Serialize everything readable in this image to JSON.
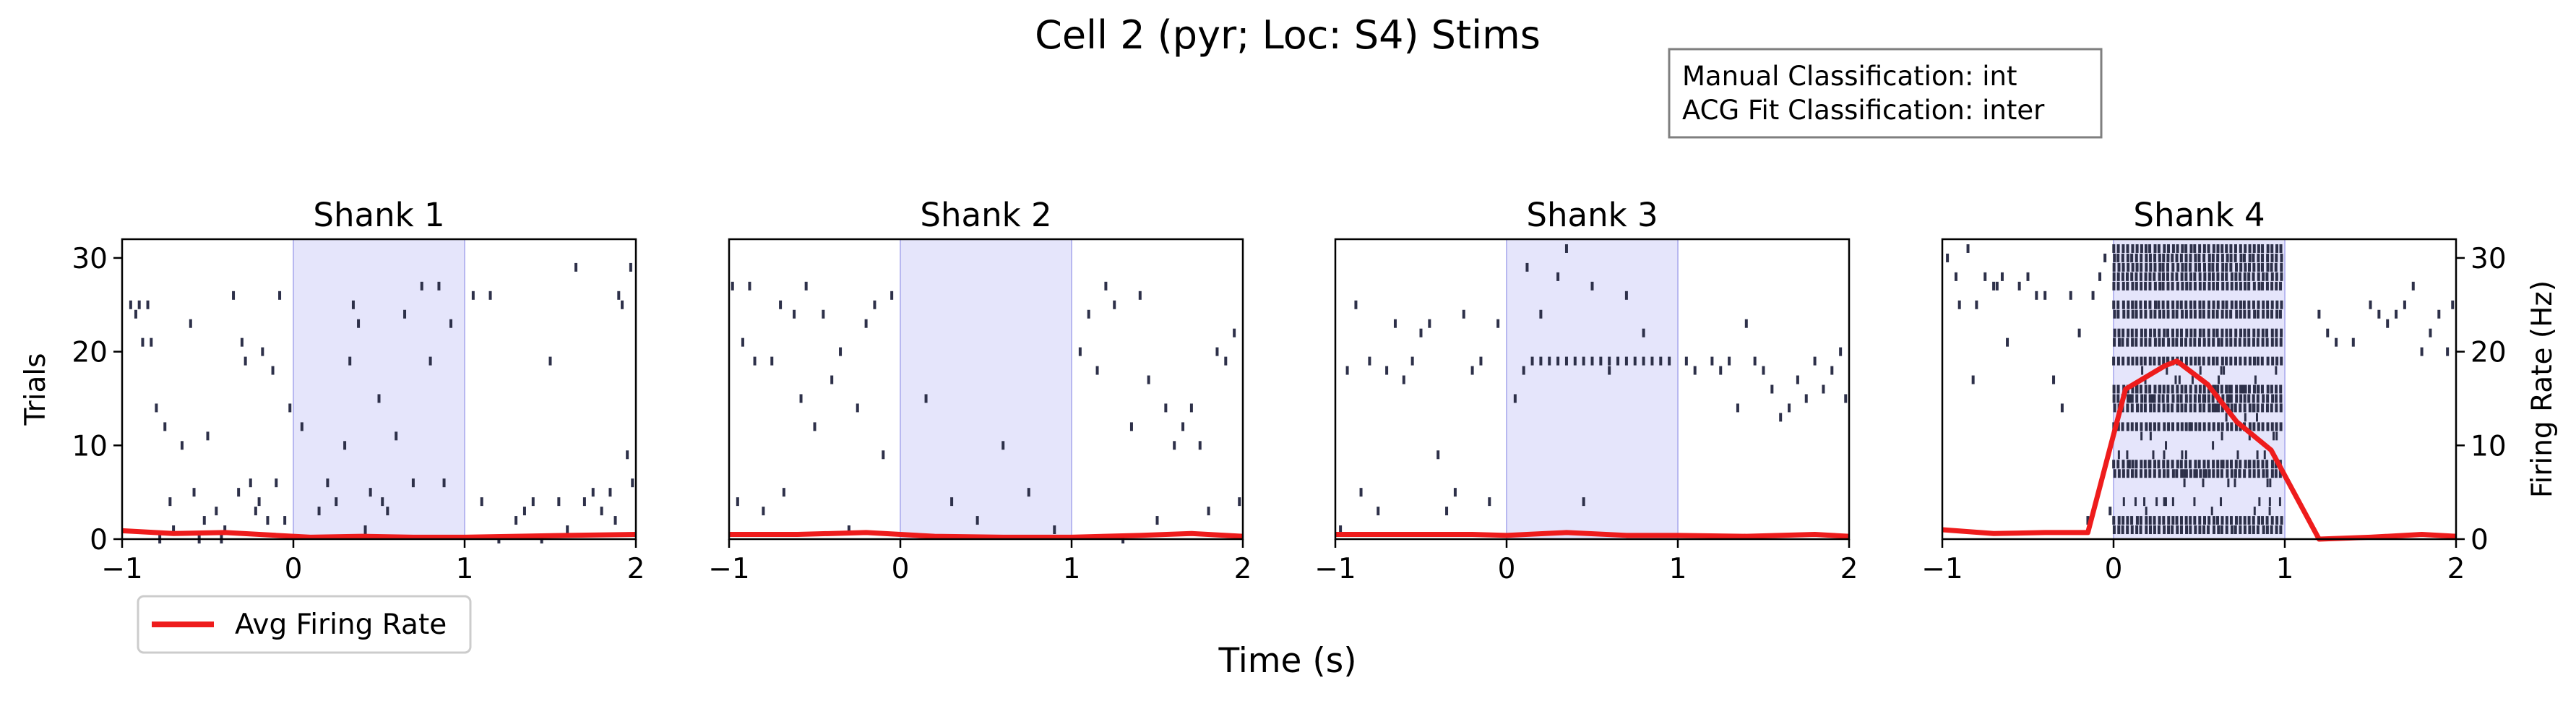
{
  "figure": {
    "title": "Cell 2 (pyr; Loc: S4) Stims",
    "xlabel": "Time (s)",
    "infobox": {
      "line1": "Manual Classification: int",
      "line2": "ACG Fit Classification: inter"
    },
    "legend": {
      "label": "Avg Firing Rate",
      "placement": "lower-left, below first panel"
    }
  },
  "colors": {
    "raster": "#2d3049",
    "rate_line": "#ee1c1c",
    "stim_fill": "#e5e5fb",
    "stim_edge": "#b8b8f0",
    "box_border": "#7f7f7f"
  },
  "chart_data": [
    {
      "type": "raster+line",
      "title": "Shank 1",
      "xlim": [
        -1,
        2
      ],
      "ylim": [
        0,
        32
      ],
      "ylabel": "Trials",
      "yticks": [
        0,
        10,
        20,
        30
      ],
      "xticks": [
        "−1",
        "0",
        "1",
        "2"
      ],
      "stim_window": [
        0,
        1
      ],
      "spikes": [
        [
          -0.95,
          25
        ],
        [
          -0.92,
          24
        ],
        [
          -0.9,
          25
        ],
        [
          -0.88,
          21
        ],
        [
          -0.85,
          25
        ],
        [
          -0.83,
          21
        ],
        [
          -0.8,
          14
        ],
        [
          -0.78,
          0
        ],
        [
          -0.75,
          12
        ],
        [
          -0.72,
          4
        ],
        [
          -0.7,
          1
        ],
        [
          -0.65,
          10
        ],
        [
          -0.6,
          23
        ],
        [
          -0.58,
          5
        ],
        [
          -0.55,
          0
        ],
        [
          -0.52,
          2
        ],
        [
          -0.5,
          11
        ],
        [
          -0.45,
          3
        ],
        [
          -0.42,
          0
        ],
        [
          -0.4,
          1
        ],
        [
          -0.35,
          26
        ],
        [
          -0.32,
          5
        ],
        [
          -0.3,
          21
        ],
        [
          -0.28,
          19
        ],
        [
          -0.25,
          6
        ],
        [
          -0.22,
          3
        ],
        [
          -0.2,
          4
        ],
        [
          -0.18,
          20
        ],
        [
          -0.15,
          2
        ],
        [
          -0.12,
          18
        ],
        [
          -0.1,
          6
        ],
        [
          -0.08,
          26
        ],
        [
          -0.05,
          2
        ],
        [
          -0.02,
          14
        ],
        [
          0.05,
          12
        ],
        [
          0.15,
          3
        ],
        [
          0.2,
          6
        ],
        [
          0.25,
          4
        ],
        [
          0.3,
          10
        ],
        [
          0.33,
          19
        ],
        [
          0.35,
          25
        ],
        [
          0.38,
          23
        ],
        [
          0.42,
          1
        ],
        [
          0.45,
          5
        ],
        [
          0.5,
          15
        ],
        [
          0.52,
          4
        ],
        [
          0.55,
          3
        ],
        [
          0.6,
          11
        ],
        [
          0.65,
          24
        ],
        [
          0.7,
          6
        ],
        [
          0.75,
          27
        ],
        [
          0.8,
          19
        ],
        [
          0.85,
          27
        ],
        [
          0.88,
          6
        ],
        [
          0.92,
          23
        ],
        [
          1.05,
          26
        ],
        [
          1.1,
          4
        ],
        [
          1.15,
          26
        ],
        [
          1.2,
          0
        ],
        [
          1.3,
          2
        ],
        [
          1.35,
          3
        ],
        [
          1.4,
          4
        ],
        [
          1.45,
          0
        ],
        [
          1.5,
          19
        ],
        [
          1.55,
          4
        ],
        [
          1.6,
          1
        ],
        [
          1.65,
          29
        ],
        [
          1.7,
          4
        ],
        [
          1.75,
          5
        ],
        [
          1.8,
          3
        ],
        [
          1.85,
          5
        ],
        [
          1.88,
          2
        ],
        [
          1.9,
          26
        ],
        [
          1.92,
          25
        ],
        [
          1.95,
          9
        ],
        [
          1.97,
          29
        ],
        [
          1.98,
          6
        ]
      ],
      "rate": {
        "x": [
          -1,
          -0.7,
          -0.4,
          -0.1,
          0.1,
          0.4,
          0.7,
          1.0,
          1.3,
          1.6,
          2.0
        ],
        "y": [
          0.9,
          0.6,
          0.7,
          0.4,
          0.2,
          0.3,
          0.2,
          0.2,
          0.3,
          0.4,
          0.5
        ]
      }
    },
    {
      "type": "raster+line",
      "title": "Shank 2",
      "xlim": [
        -1,
        2
      ],
      "ylim": [
        0,
        32
      ],
      "xticks": [
        "−1",
        "0",
        "1",
        "2"
      ],
      "stim_window": [
        0,
        1
      ],
      "spikes": [
        [
          -0.98,
          27
        ],
        [
          -0.95,
          4
        ],
        [
          -0.92,
          21
        ],
        [
          -0.88,
          27
        ],
        [
          -0.85,
          19
        ],
        [
          -0.8,
          3
        ],
        [
          -0.75,
          19
        ],
        [
          -0.7,
          25
        ],
        [
          -0.68,
          5
        ],
        [
          -0.62,
          24
        ],
        [
          -0.58,
          15
        ],
        [
          -0.55,
          27
        ],
        [
          -0.5,
          12
        ],
        [
          -0.45,
          24
        ],
        [
          -0.4,
          17
        ],
        [
          -0.35,
          20
        ],
        [
          -0.3,
          1
        ],
        [
          -0.25,
          14
        ],
        [
          -0.2,
          23
        ],
        [
          -0.15,
          25
        ],
        [
          -0.1,
          9
        ],
        [
          -0.05,
          26
        ],
        [
          0.15,
          15
        ],
        [
          0.3,
          4
        ],
        [
          0.45,
          2
        ],
        [
          0.6,
          10
        ],
        [
          0.75,
          5
        ],
        [
          0.9,
          1
        ],
        [
          1.05,
          20
        ],
        [
          1.1,
          24
        ],
        [
          1.15,
          18
        ],
        [
          1.2,
          27
        ],
        [
          1.25,
          25
        ],
        [
          1.3,
          0
        ],
        [
          1.35,
          12
        ],
        [
          1.4,
          26
        ],
        [
          1.45,
          17
        ],
        [
          1.5,
          2
        ],
        [
          1.55,
          14
        ],
        [
          1.6,
          10
        ],
        [
          1.65,
          12
        ],
        [
          1.7,
          14
        ],
        [
          1.75,
          10
        ],
        [
          1.8,
          3
        ],
        [
          1.85,
          20
        ],
        [
          1.9,
          19
        ],
        [
          1.95,
          22
        ],
        [
          1.98,
          4
        ]
      ],
      "rate": {
        "x": [
          -1,
          -0.6,
          -0.2,
          0.2,
          0.6,
          1.0,
          1.4,
          1.7,
          2.0
        ],
        "y": [
          0.5,
          0.5,
          0.7,
          0.3,
          0.2,
          0.2,
          0.4,
          0.6,
          0.3
        ]
      }
    },
    {
      "type": "raster+line",
      "title": "Shank 3",
      "xlim": [
        -1,
        2
      ],
      "ylim": [
        0,
        32
      ],
      "xticks": [
        "−1",
        "0",
        "1",
        "2"
      ],
      "stim_window": [
        0,
        1
      ],
      "spikes": [
        [
          -0.97,
          1
        ],
        [
          -0.93,
          18
        ],
        [
          -0.88,
          25
        ],
        [
          -0.85,
          5
        ],
        [
          -0.8,
          19
        ],
        [
          -0.75,
          3
        ],
        [
          -0.7,
          18
        ],
        [
          -0.65,
          23
        ],
        [
          -0.6,
          17
        ],
        [
          -0.55,
          19
        ],
        [
          -0.5,
          22
        ],
        [
          -0.45,
          23
        ],
        [
          -0.4,
          9
        ],
        [
          -0.35,
          3
        ],
        [
          -0.3,
          5
        ],
        [
          -0.25,
          24
        ],
        [
          -0.2,
          18
        ],
        [
          -0.15,
          19
        ],
        [
          -0.1,
          4
        ],
        [
          -0.05,
          23
        ],
        [
          0.05,
          15
        ],
        [
          0.1,
          18
        ],
        [
          0.15,
          19
        ],
        [
          0.2,
          19
        ],
        [
          0.25,
          19
        ],
        [
          0.3,
          19
        ],
        [
          0.35,
          19
        ],
        [
          0.4,
          19
        ],
        [
          0.45,
          19
        ],
        [
          0.5,
          19
        ],
        [
          0.55,
          19
        ],
        [
          0.6,
          19
        ],
        [
          0.65,
          19
        ],
        [
          0.7,
          19
        ],
        [
          0.75,
          19
        ],
        [
          0.8,
          19
        ],
        [
          0.85,
          19
        ],
        [
          0.9,
          19
        ],
        [
          0.95,
          19
        ],
        [
          0.12,
          29
        ],
        [
          0.3,
          28
        ],
        [
          0.5,
          27
        ],
        [
          0.7,
          26
        ],
        [
          0.2,
          24
        ],
        [
          0.45,
          4
        ],
        [
          0.6,
          18
        ],
        [
          0.8,
          22
        ],
        [
          0.35,
          31
        ],
        [
          1.05,
          19
        ],
        [
          1.1,
          18
        ],
        [
          1.2,
          19
        ],
        [
          1.25,
          18
        ],
        [
          1.3,
          19
        ],
        [
          1.35,
          14
        ],
        [
          1.4,
          23
        ],
        [
          1.45,
          19
        ],
        [
          1.5,
          18
        ],
        [
          1.55,
          16
        ],
        [
          1.6,
          13
        ],
        [
          1.65,
          14
        ],
        [
          1.7,
          17
        ],
        [
          1.75,
          15
        ],
        [
          1.8,
          19
        ],
        [
          1.85,
          16
        ],
        [
          1.9,
          18
        ],
        [
          1.95,
          20
        ],
        [
          1.98,
          15
        ]
      ],
      "rate": {
        "x": [
          -1,
          -0.6,
          -0.2,
          0.0,
          0.35,
          0.7,
          1.0,
          1.4,
          1.8,
          2.0
        ],
        "y": [
          0.5,
          0.5,
          0.5,
          0.4,
          0.7,
          0.4,
          0.4,
          0.3,
          0.5,
          0.3
        ]
      }
    },
    {
      "type": "raster+line",
      "title": "Shank 4",
      "xlim": [
        -1,
        2
      ],
      "ylim": [
        0,
        32
      ],
      "y2label": "Firing Rate (Hz)",
      "y2ticks": [
        0,
        10,
        20,
        30
      ],
      "xticks": [
        "−1",
        "0",
        "1",
        "2"
      ],
      "stim_window": [
        0,
        1
      ],
      "dense_rows": [
        1,
        2,
        7,
        8,
        12,
        14,
        15,
        16,
        19,
        21,
        22,
        24,
        25,
        27,
        28,
        29,
        30,
        31
      ],
      "spikes": [
        [
          -0.97,
          30
        ],
        [
          -0.92,
          28
        ],
        [
          -0.9,
          25
        ],
        [
          -0.85,
          31
        ],
        [
          -0.82,
          17
        ],
        [
          -0.8,
          25
        ],
        [
          -0.75,
          28
        ],
        [
          -0.7,
          27
        ],
        [
          -0.68,
          27
        ],
        [
          -0.65,
          28
        ],
        [
          -0.62,
          21
        ],
        [
          -0.55,
          27
        ],
        [
          -0.5,
          28
        ],
        [
          -0.45,
          26
        ],
        [
          -0.4,
          26
        ],
        [
          -0.35,
          17
        ],
        [
          -0.3,
          14
        ],
        [
          -0.25,
          26
        ],
        [
          -0.2,
          22
        ],
        [
          -0.15,
          2
        ],
        [
          -0.12,
          26
        ],
        [
          -0.08,
          28
        ],
        [
          -0.05,
          30
        ],
        [
          -0.02,
          3
        ],
        [
          1.2,
          24
        ],
        [
          1.25,
          22
        ],
        [
          1.3,
          21
        ],
        [
          1.4,
          21
        ],
        [
          1.5,
          25
        ],
        [
          1.55,
          24
        ],
        [
          1.6,
          23
        ],
        [
          1.65,
          24
        ],
        [
          1.7,
          25
        ],
        [
          1.75,
          27
        ],
        [
          1.8,
          20
        ],
        [
          1.85,
          22
        ],
        [
          1.9,
          24
        ],
        [
          1.95,
          20
        ],
        [
          1.98,
          25
        ]
      ],
      "rate": {
        "x": [
          -1,
          -0.7,
          -0.4,
          -0.15,
          0.07,
          0.3,
          0.37,
          0.55,
          0.72,
          0.92,
          1.2,
          1.5,
          1.8,
          2.0
        ],
        "y": [
          1.0,
          0.6,
          0.7,
          0.7,
          16,
          18.5,
          19,
          16.5,
          12.5,
          9.5,
          0,
          0.2,
          0.5,
          0.3
        ]
      }
    }
  ]
}
